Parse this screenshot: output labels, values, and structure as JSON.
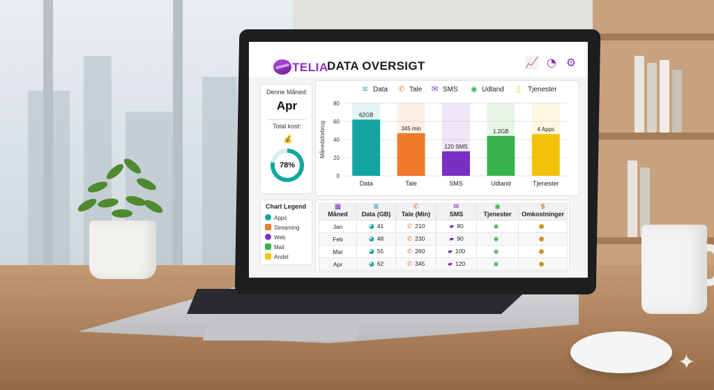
{
  "app": {
    "logo_text": "TELIA",
    "title": "DATA OVERSIGT",
    "toolbar_icons": [
      "line-chart-icon",
      "pie-chart-icon",
      "gear-icon"
    ],
    "brand_color": "#8e2fbf"
  },
  "summary": {
    "month_label": "Denne Måned:",
    "month_value": "Apr",
    "cost_label": "Total kost:",
    "cost_icon": "money-bag-icon",
    "progress_label": "78%",
    "progress_value": 0.78
  },
  "legend": {
    "title": "Chart Legend",
    "items": [
      {
        "label": "Apps",
        "color": "#13a6a0",
        "icon": "pie-icon"
      },
      {
        "label": "Streaming",
        "color": "#ef7a2a",
        "icon": "film-icon"
      },
      {
        "label": "Web",
        "color": "#7a2fc2",
        "icon": "globe-icon"
      },
      {
        "label": "Mail",
        "color": "#38b24a",
        "icon": "mail-icon"
      },
      {
        "label": "Andet",
        "color": "#f2c20a",
        "icon": "folder-icon"
      }
    ]
  },
  "chart_data": {
    "type": "bar",
    "ylabel": "Månedsforbrug",
    "ylim": [
      0,
      80
    ],
    "yticks": [
      "0",
      "20",
      "40",
      "60",
      "80"
    ],
    "grid": true,
    "categories": [
      "Data",
      "Tale",
      "SMS",
      "Udland",
      "Tjenester"
    ],
    "values": [
      62,
      47,
      27,
      44,
      46
    ],
    "data_labels": [
      "62GB",
      "345 min",
      "120 SMS",
      "1.2GB",
      "4 Apps"
    ],
    "colors": [
      "#13a6a0",
      "#ef7a2a",
      "#7a2fc2",
      "#38b24a",
      "#f2c20a"
    ],
    "legend": [
      {
        "label": "Data",
        "icon": "wifi-icon",
        "color": "#13a6a0"
      },
      {
        "label": "Tale",
        "icon": "phone-icon",
        "color": "#ef7a2a"
      },
      {
        "label": "SMS",
        "icon": "mail-icon",
        "color": "#7a2fc2"
      },
      {
        "label": "Udland",
        "icon": "globe-icon",
        "color": "#38b24a"
      },
      {
        "label": "Tjenester",
        "icon": "mobile-icon",
        "color": "#f2c20a"
      }
    ]
  },
  "table": {
    "headers": [
      "Måned",
      "Data (GB)",
      "Tale (Min)",
      "SMS",
      "Tjenester",
      "Omkostninger"
    ],
    "rows": [
      {
        "month": "Jan",
        "data": "41",
        "tale": "210",
        "sms": "80"
      },
      {
        "month": "Feb",
        "data": "48",
        "tale": "230",
        "sms": "90"
      },
      {
        "month": "Mar",
        "data": "55",
        "tale": "260",
        "sms": "100"
      },
      {
        "month": "Apr",
        "data": "62",
        "tale": "345",
        "sms": "120"
      }
    ]
  }
}
